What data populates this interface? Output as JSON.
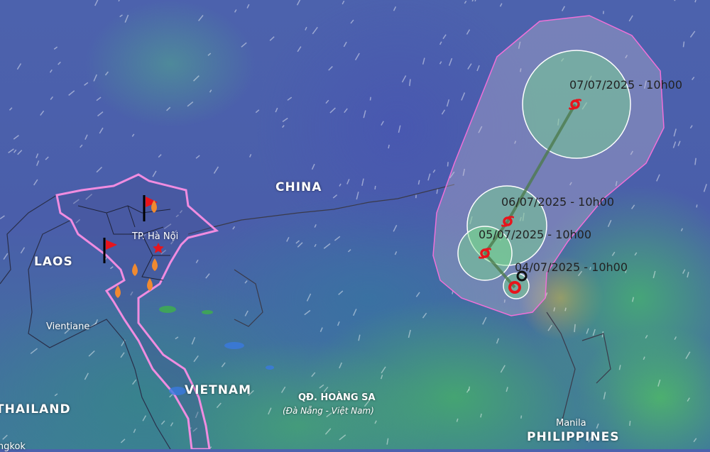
{
  "map": {
    "countries": {
      "china": "CHINA",
      "laos": "LAOS",
      "vietnam": "VIETNAM",
      "thailand": "THAILAND",
      "philippines": "PHILIPPINES"
    },
    "cities": {
      "hanoi": "TP. Hà Nội",
      "vientiane": "Vientiane",
      "manila": "Manila",
      "bangkok": "Bangkok"
    },
    "islands": {
      "name": "QĐ. HOÀNG SA",
      "sub": "(Đà Nẵng - Việt Nam)"
    }
  },
  "storm_track": {
    "points": [
      {
        "label": "04/07/2025 - 10h00",
        "icon": "current-storm-ring-icon"
      },
      {
        "label": "05/07/2025 - 10h00",
        "icon": "storm-icon"
      },
      {
        "label": "06/07/2025 - 10h00",
        "icon": "storm-icon"
      },
      {
        "label": "07/07/2025 - 10h00",
        "icon": "storm-icon"
      }
    ]
  },
  "colors": {
    "storm": "#e8141c",
    "border": "#f08ce0",
    "track": "#4d7a4d"
  }
}
